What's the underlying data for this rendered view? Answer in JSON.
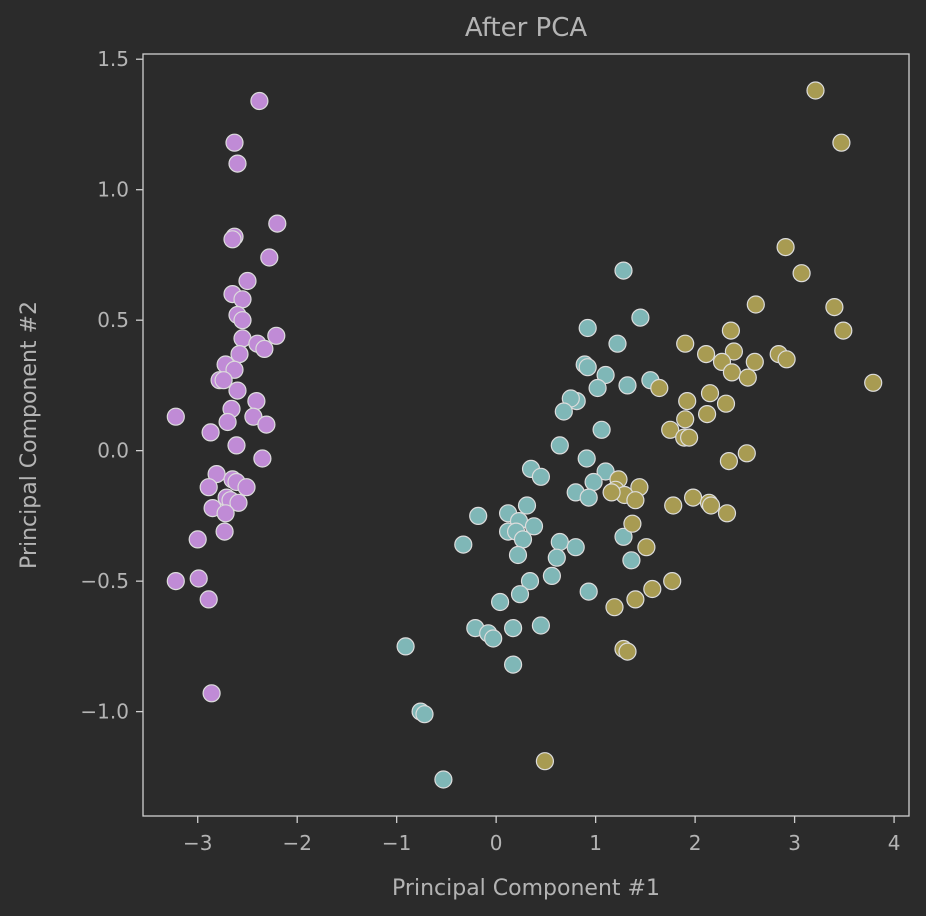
{
  "chart_data": {
    "type": "scatter",
    "title": "After PCA",
    "xlabel": "Principal Component #1",
    "ylabel": "Principal Component #2",
    "xlim": [
      -3.55,
      4.15
    ],
    "ylim": [
      -1.4,
      1.52
    ],
    "grid": false,
    "x_ticks": [
      -3,
      -2,
      -1,
      0,
      1,
      2,
      3,
      4
    ],
    "x_tick_labels": [
      "−3",
      "−2",
      "−1",
      "0",
      "1",
      "2",
      "3",
      "4"
    ],
    "y_ticks": [
      1.5,
      1.0,
      0.5,
      0.0,
      -0.5,
      -1.0
    ],
    "y_tick_labels": [
      "1.5",
      "1.0",
      "0.5",
      "0.0",
      "−0.5",
      "−1.0"
    ],
    "colors": {
      "background": "#2b2b2b",
      "axes_frame": "#cfcfcf",
      "text": "#b4b4b4",
      "marker_edge": "#dcdcdc"
    },
    "series": [
      {
        "color": "#c08bd6",
        "points": [
          [
            -2.38,
            1.34
          ],
          [
            -2.63,
            1.18
          ],
          [
            -2.6,
            1.1
          ],
          [
            -2.2,
            0.87
          ],
          [
            -2.63,
            0.82
          ],
          [
            -2.65,
            0.81
          ],
          [
            -2.28,
            0.74
          ],
          [
            -2.5,
            0.65
          ],
          [
            -2.65,
            0.6
          ],
          [
            -2.55,
            0.58
          ],
          [
            -2.6,
            0.52
          ],
          [
            -2.55,
            0.5
          ],
          [
            -2.55,
            0.43
          ],
          [
            -2.21,
            0.44
          ],
          [
            -2.4,
            0.41
          ],
          [
            -2.33,
            0.39
          ],
          [
            -2.58,
            0.37
          ],
          [
            -2.72,
            0.33
          ],
          [
            -2.63,
            0.31
          ],
          [
            -2.78,
            0.27
          ],
          [
            -2.74,
            0.27
          ],
          [
            -2.6,
            0.23
          ],
          [
            -2.41,
            0.19
          ],
          [
            -2.66,
            0.16
          ],
          [
            -2.44,
            0.13
          ],
          [
            -3.22,
            0.13
          ],
          [
            -2.7,
            0.11
          ],
          [
            -2.31,
            0.1
          ],
          [
            -2.87,
            0.07
          ],
          [
            -2.61,
            0.02
          ],
          [
            -2.35,
            -0.03
          ],
          [
            -2.81,
            -0.09
          ],
          [
            -2.65,
            -0.11
          ],
          [
            -2.61,
            -0.12
          ],
          [
            -2.89,
            -0.14
          ],
          [
            -2.51,
            -0.14
          ],
          [
            -2.71,
            -0.18
          ],
          [
            -2.67,
            -0.19
          ],
          [
            -2.59,
            -0.2
          ],
          [
            -2.85,
            -0.22
          ],
          [
            -2.72,
            -0.24
          ],
          [
            -2.73,
            -0.31
          ],
          [
            -3.0,
            -0.34
          ],
          [
            -2.99,
            -0.49
          ],
          [
            -3.22,
            -0.5
          ],
          [
            -2.89,
            -0.57
          ],
          [
            -2.86,
            -0.93
          ]
        ]
      },
      {
        "color": "#7fb7b7",
        "points": [
          [
            1.28,
            0.69
          ],
          [
            0.92,
            0.47
          ],
          [
            1.45,
            0.51
          ],
          [
            1.22,
            0.41
          ],
          [
            0.89,
            0.33
          ],
          [
            0.92,
            0.32
          ],
          [
            1.1,
            0.29
          ],
          [
            1.02,
            0.24
          ],
          [
            1.32,
            0.25
          ],
          [
            1.55,
            0.27
          ],
          [
            0.81,
            0.19
          ],
          [
            0.75,
            0.2
          ],
          [
            0.68,
            0.15
          ],
          [
            1.06,
            0.08
          ],
          [
            0.64,
            0.02
          ],
          [
            0.91,
            -0.03
          ],
          [
            0.35,
            -0.07
          ],
          [
            1.1,
            -0.08
          ],
          [
            0.45,
            -0.1
          ],
          [
            0.98,
            -0.12
          ],
          [
            0.8,
            -0.16
          ],
          [
            0.93,
            -0.18
          ],
          [
            0.31,
            -0.21
          ],
          [
            0.12,
            -0.24
          ],
          [
            -0.18,
            -0.25
          ],
          [
            0.23,
            -0.27
          ],
          [
            0.38,
            -0.29
          ],
          [
            0.12,
            -0.31
          ],
          [
            0.2,
            -0.31
          ],
          [
            0.27,
            -0.34
          ],
          [
            1.28,
            -0.33
          ],
          [
            -0.33,
            -0.36
          ],
          [
            0.64,
            -0.35
          ],
          [
            0.8,
            -0.37
          ],
          [
            0.22,
            -0.4
          ],
          [
            0.61,
            -0.41
          ],
          [
            1.36,
            -0.42
          ],
          [
            0.56,
            -0.48
          ],
          [
            0.34,
            -0.5
          ],
          [
            0.24,
            -0.55
          ],
          [
            0.93,
            -0.54
          ],
          [
            0.04,
            -0.58
          ],
          [
            0.17,
            -0.68
          ],
          [
            -0.21,
            -0.68
          ],
          [
            0.45,
            -0.67
          ],
          [
            -0.08,
            -0.7
          ],
          [
            -0.03,
            -0.72
          ],
          [
            0.17,
            -0.82
          ],
          [
            -0.91,
            -0.75
          ],
          [
            -0.76,
            -1.0
          ],
          [
            -0.72,
            -1.01
          ],
          [
            -0.53,
            -1.26
          ]
        ]
      },
      {
        "color": "#a89b52",
        "points": [
          [
            3.21,
            1.38
          ],
          [
            3.47,
            1.18
          ],
          [
            2.91,
            0.78
          ],
          [
            3.07,
            0.68
          ],
          [
            2.61,
            0.56
          ],
          [
            3.4,
            0.55
          ],
          [
            3.49,
            0.46
          ],
          [
            2.36,
            0.46
          ],
          [
            1.9,
            0.41
          ],
          [
            2.11,
            0.37
          ],
          [
            2.39,
            0.38
          ],
          [
            2.27,
            0.34
          ],
          [
            2.6,
            0.34
          ],
          [
            2.84,
            0.37
          ],
          [
            2.92,
            0.35
          ],
          [
            2.37,
            0.3
          ],
          [
            2.53,
            0.28
          ],
          [
            3.79,
            0.26
          ],
          [
            1.64,
            0.24
          ],
          [
            2.15,
            0.22
          ],
          [
            1.92,
            0.19
          ],
          [
            2.31,
            0.18
          ],
          [
            2.12,
            0.14
          ],
          [
            1.9,
            0.12
          ],
          [
            1.75,
            0.08
          ],
          [
            1.89,
            0.05
          ],
          [
            1.94,
            0.05
          ],
          [
            2.52,
            -0.01
          ],
          [
            2.34,
            -0.04
          ],
          [
            1.23,
            -0.11
          ],
          [
            1.2,
            -0.15
          ],
          [
            1.44,
            -0.14
          ],
          [
            1.29,
            -0.17
          ],
          [
            1.16,
            -0.16
          ],
          [
            1.98,
            -0.18
          ],
          [
            1.4,
            -0.19
          ],
          [
            2.14,
            -0.2
          ],
          [
            1.78,
            -0.21
          ],
          [
            2.16,
            -0.21
          ],
          [
            2.32,
            -0.24
          ],
          [
            1.37,
            -0.28
          ],
          [
            1.51,
            -0.37
          ],
          [
            1.77,
            -0.5
          ],
          [
            1.57,
            -0.53
          ],
          [
            1.4,
            -0.57
          ],
          [
            1.19,
            -0.6
          ],
          [
            1.28,
            -0.76
          ],
          [
            1.32,
            -0.77
          ],
          [
            0.49,
            -1.19
          ]
        ]
      }
    ]
  }
}
